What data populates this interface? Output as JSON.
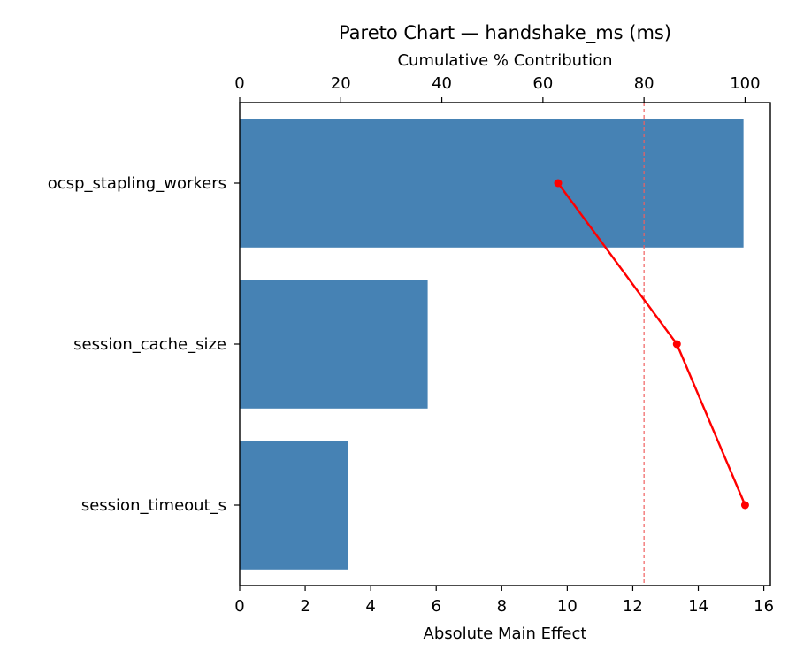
{
  "chart_data": {
    "type": "bar",
    "orientation": "horizontal",
    "title": "Pareto Chart — handshake_ms (ms)",
    "xlabel": "Absolute Main Effect",
    "ylabel": "",
    "secondary_xlabel": "Cumulative % Contribution",
    "categories": [
      "ocsp_stapling_workers",
      "session_cache_size",
      "session_timeout_s"
    ],
    "series": [
      {
        "name": "Absolute Main Effect",
        "type": "bar",
        "color": "#4682b4",
        "values": [
          15.38,
          5.74,
          3.31
        ]
      },
      {
        "name": "Cumulative %",
        "type": "line",
        "color": "#ff0000",
        "axis": "top",
        "values": [
          63.0,
          86.5,
          100.0
        ]
      }
    ],
    "threshold_line": {
      "axis": "top",
      "value": 80,
      "color": "#f06060",
      "style": "dashed"
    },
    "xlim": [
      0,
      16.2
    ],
    "xticks": [
      "0",
      "2",
      "4",
      "6",
      "8",
      "10",
      "12",
      "14",
      "16"
    ],
    "top_xlim": [
      0,
      105
    ],
    "top_xticks": [
      "0",
      "20",
      "40",
      "60",
      "80",
      "100"
    ],
    "grid": false,
    "legend": null
  }
}
